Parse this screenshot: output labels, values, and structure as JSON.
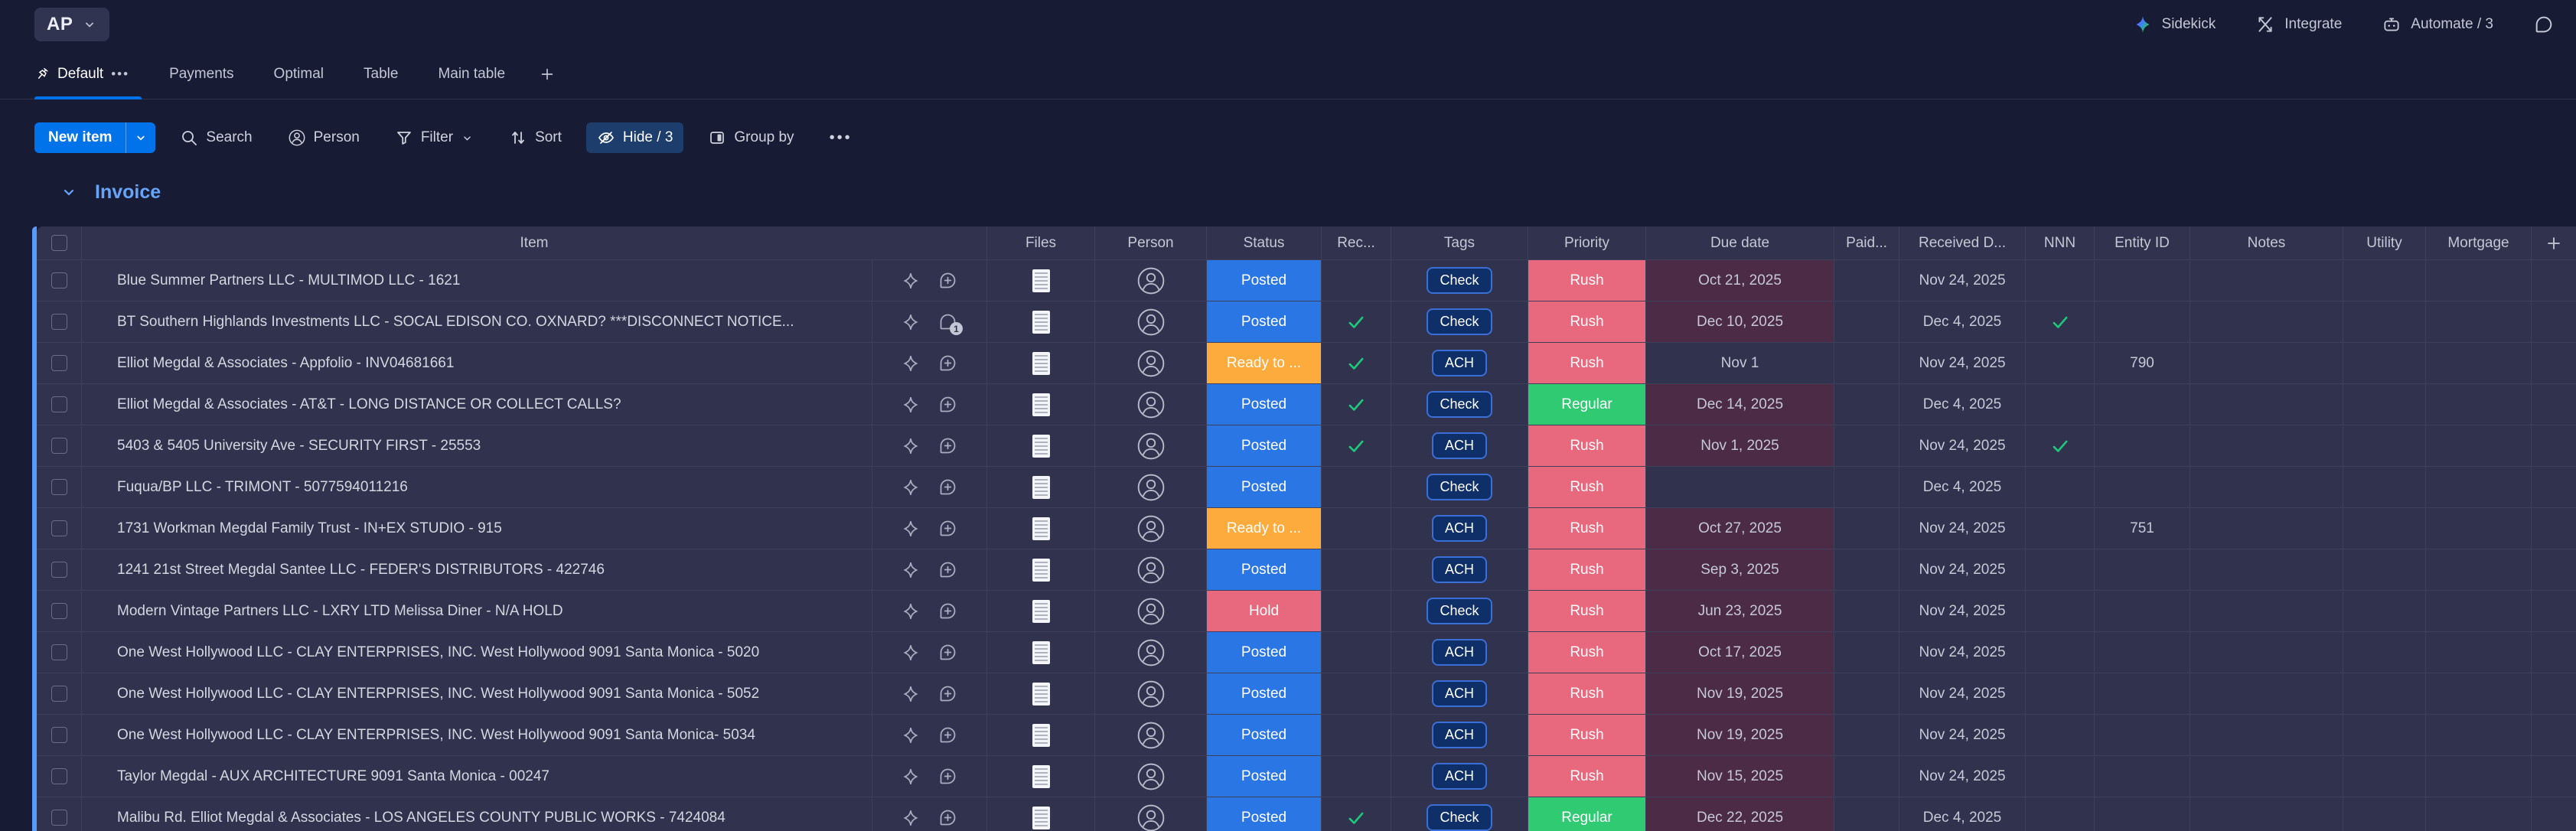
{
  "board": {
    "title": "AP"
  },
  "top_actions": [
    {
      "label": "Sidekick"
    },
    {
      "label": "Integrate"
    },
    {
      "label": "Automate / 3"
    }
  ],
  "tabs": [
    {
      "label": "Default",
      "active": true,
      "pinned": true
    },
    {
      "label": "Payments",
      "active": false
    },
    {
      "label": "Optimal",
      "active": false
    },
    {
      "label": "Table",
      "active": false
    },
    {
      "label": "Main table",
      "active": false
    }
  ],
  "toolbar": {
    "new_item": "New item",
    "search": "Search",
    "person": "Person",
    "filter": "Filter",
    "sort": "Sort",
    "hide": "Hide / 3",
    "group_by": "Group by"
  },
  "group": {
    "title": "Invoice"
  },
  "columns": [
    "Item",
    "Files",
    "Person",
    "Status",
    "Rec...",
    "Tags",
    "Priority",
    "Due date",
    "Paid...",
    "Received D...",
    "NNN",
    "Entity ID",
    "Notes",
    "Utility",
    "Mortgage"
  ],
  "colors": {
    "posted": "#2b76e5",
    "ready": "#fdab3d",
    "hold": "#e8697d",
    "rush": "#e8697d",
    "regular": "#2fca72",
    "overdue_bg": "#4b2b45",
    "group": "#579bfc",
    "primary": "#0073ea",
    "check_green": "#1ec97c"
  },
  "rows": [
    {
      "name": "Blue Summer Partners LLC - MULTIMOD LLC - 1621",
      "status": "Posted",
      "status_key": "posted",
      "rec": false,
      "tag": "Check",
      "priority": "Rush",
      "priority_key": "rush",
      "due": "Oct 21, 2025",
      "due_overdue": true,
      "received": "Nov 24, 2025",
      "nnn": false,
      "entity_id": "",
      "chat_badge": ""
    },
    {
      "name": "BT Southern Highlands Investments LLC - SOCAL EDISON CO. OXNARD? ***DISCONNECT NOTICE...",
      "status": "Posted",
      "status_key": "posted",
      "rec": true,
      "tag": "Check",
      "priority": "Rush",
      "priority_key": "rush",
      "due": "Dec 10, 2025",
      "due_overdue": true,
      "received": "Dec 4, 2025",
      "nnn": true,
      "entity_id": "",
      "chat_badge": "1"
    },
    {
      "name": "Elliot Megdal & Associates - Appfolio - INV04681661",
      "status": "Ready to ...",
      "status_key": "ready",
      "rec": true,
      "tag": "ACH",
      "priority": "Rush",
      "priority_key": "rush",
      "due": "Nov 1",
      "due_overdue": false,
      "received": "Nov 24, 2025",
      "nnn": false,
      "entity_id": "790",
      "chat_badge": ""
    },
    {
      "name": "Elliot Megdal & Associates - AT&T - LONG DISTANCE OR COLLECT CALLS?",
      "status": "Posted",
      "status_key": "posted",
      "rec": true,
      "tag": "Check",
      "priority": "Regular",
      "priority_key": "regular",
      "due": "Dec 14, 2025",
      "due_overdue": true,
      "received": "Dec 4, 2025",
      "nnn": false,
      "entity_id": "",
      "chat_badge": ""
    },
    {
      "name": "5403 & 5405 University Ave - SECURITY FIRST - 25553",
      "status": "Posted",
      "status_key": "posted",
      "rec": true,
      "tag": "ACH",
      "priority": "Rush",
      "priority_key": "rush",
      "due": "Nov 1, 2025",
      "due_overdue": true,
      "received": "Nov 24, 2025",
      "nnn": true,
      "entity_id": "",
      "chat_badge": ""
    },
    {
      "name": "Fuqua/BP LLC - TRIMONT - 5077594011216",
      "status": "Posted",
      "status_key": "posted",
      "rec": false,
      "tag": "Check",
      "priority": "Rush",
      "priority_key": "rush",
      "due": "",
      "due_overdue": false,
      "received": "Dec 4, 2025",
      "nnn": false,
      "entity_id": "",
      "chat_badge": ""
    },
    {
      "name": "1731 Workman Megdal Family Trust - IN+EX STUDIO - 915",
      "status": "Ready to ...",
      "status_key": "ready",
      "rec": false,
      "tag": "ACH",
      "priority": "Rush",
      "priority_key": "rush",
      "due": "Oct 27, 2025",
      "due_overdue": true,
      "received": "Nov 24, 2025",
      "nnn": false,
      "entity_id": "751",
      "chat_badge": ""
    },
    {
      "name": "1241 21st Street Megdal Santee LLC - FEDER'S DISTRIBUTORS - 422746",
      "status": "Posted",
      "status_key": "posted",
      "rec": false,
      "tag": "ACH",
      "priority": "Rush",
      "priority_key": "rush",
      "due": "Sep 3, 2025",
      "due_overdue": true,
      "received": "Nov 24, 2025",
      "nnn": false,
      "entity_id": "",
      "chat_badge": ""
    },
    {
      "name": "Modern Vintage Partners LLC - LXRY LTD Melissa Diner - N/A HOLD",
      "status": "Hold",
      "status_key": "hold",
      "rec": false,
      "tag": "Check",
      "priority": "Rush",
      "priority_key": "rush",
      "due": "Jun 23, 2025",
      "due_overdue": true,
      "received": "Nov 24, 2025",
      "nnn": false,
      "entity_id": "",
      "chat_badge": ""
    },
    {
      "name": "One West Hollywood LLC - CLAY ENTERPRISES, INC. West Hollywood 9091 Santa Monica - 5020",
      "status": "Posted",
      "status_key": "posted",
      "rec": false,
      "tag": "ACH",
      "priority": "Rush",
      "priority_key": "rush",
      "due": "Oct 17, 2025",
      "due_overdue": true,
      "received": "Nov 24, 2025",
      "nnn": false,
      "entity_id": "",
      "chat_badge": ""
    },
    {
      "name": "One West Hollywood LLC - CLAY ENTERPRISES, INC. West Hollywood 9091 Santa Monica - 5052",
      "status": "Posted",
      "status_key": "posted",
      "rec": false,
      "tag": "ACH",
      "priority": "Rush",
      "priority_key": "rush",
      "due": "Nov 19, 2025",
      "due_overdue": true,
      "received": "Nov 24, 2025",
      "nnn": false,
      "entity_id": "",
      "chat_badge": ""
    },
    {
      "name": "One West Hollywood LLC - CLAY ENTERPRISES, INC. West Hollywood 9091 Santa Monica- 5034",
      "status": "Posted",
      "status_key": "posted",
      "rec": false,
      "tag": "ACH",
      "priority": "Rush",
      "priority_key": "rush",
      "due": "Nov 19, 2025",
      "due_overdue": true,
      "received": "Nov 24, 2025",
      "nnn": false,
      "entity_id": "",
      "chat_badge": ""
    },
    {
      "name": "Taylor Megdal - AUX ARCHITECTURE 9091 Santa Monica - 00247",
      "status": "Posted",
      "status_key": "posted",
      "rec": false,
      "tag": "ACH",
      "priority": "Rush",
      "priority_key": "rush",
      "due": "Nov 15, 2025",
      "due_overdue": true,
      "received": "Nov 24, 2025",
      "nnn": false,
      "entity_id": "",
      "chat_badge": ""
    },
    {
      "name": "Malibu Rd. Elliot Megdal & Associates - LOS ANGELES COUNTY PUBLIC WORKS - 7424084",
      "status": "Posted",
      "status_key": "posted",
      "rec": true,
      "tag": "Check",
      "priority": "Regular",
      "priority_key": "regular",
      "due": "Dec 22, 2025",
      "due_overdue": true,
      "received": "Dec 4, 2025",
      "nnn": false,
      "entity_id": "",
      "chat_badge": ""
    }
  ]
}
